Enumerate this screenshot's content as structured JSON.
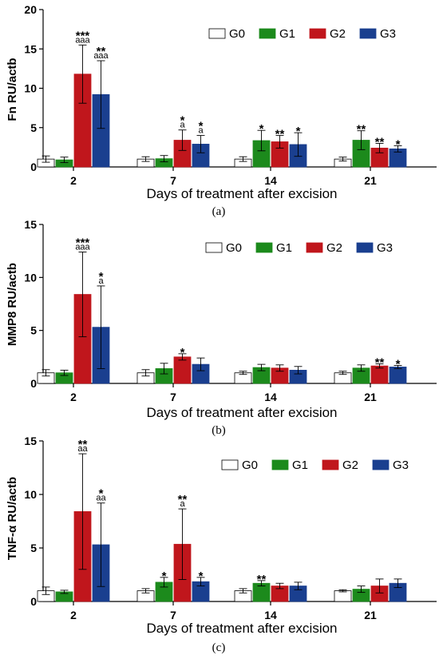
{
  "colors": {
    "G0": "#ffffff",
    "G1": "#1c8a1c",
    "G2": "#c0161c",
    "G3": "#1a3f8f"
  },
  "chart_data": [
    {
      "type": "bar",
      "panel": "(a)",
      "ylabel": "Fn RU/actb",
      "xlabel": "Days of treatment after excision",
      "ylim": [
        0,
        20
      ],
      "yticks": [
        0,
        5,
        10,
        15,
        20
      ],
      "categories": [
        "2",
        "7",
        "14",
        "21"
      ],
      "legend": "top-right",
      "series": [
        {
          "name": "G0",
          "values": [
            1.0,
            1.0,
            1.0,
            1.0
          ],
          "errors": [
            0.4,
            0.3,
            0.3,
            0.25
          ],
          "stars": [
            "",
            "",
            "",
            ""
          ],
          "letters": [
            "",
            "",
            "",
            ""
          ]
        },
        {
          "name": "G1",
          "values": [
            0.9,
            1.05,
            3.35,
            3.4
          ],
          "errors": [
            0.35,
            0.4,
            1.3,
            1.2
          ],
          "stars": [
            "",
            "",
            "*",
            "**"
          ],
          "letters": [
            "",
            "",
            "",
            ""
          ]
        },
        {
          "name": "G2",
          "values": [
            11.8,
            3.4,
            3.2,
            2.4
          ],
          "errors": [
            3.7,
            1.3,
            0.8,
            0.6
          ],
          "stars": [
            "***",
            "*",
            "**",
            "**"
          ],
          "letters": [
            "aaa",
            "a",
            "",
            ""
          ]
        },
        {
          "name": "G3",
          "values": [
            9.2,
            2.9,
            2.85,
            2.3
          ],
          "errors": [
            4.3,
            1.1,
            1.5,
            0.4
          ],
          "stars": [
            "**",
            "*",
            "*",
            "*"
          ],
          "letters": [
            "aaa",
            "a",
            "",
            ""
          ]
        }
      ]
    },
    {
      "type": "bar",
      "panel": "(b)",
      "ylabel": "MMP8 RU/actb",
      "xlabel": "Days of treatment after excision",
      "ylim": [
        0,
        15
      ],
      "yticks": [
        0,
        5,
        10,
        15
      ],
      "categories": [
        "2",
        "7",
        "14",
        "21"
      ],
      "legend": "top-right",
      "series": [
        {
          "name": "G0",
          "values": [
            1.0,
            1.0,
            1.0,
            1.0
          ],
          "errors": [
            0.3,
            0.3,
            0.15,
            0.15
          ],
          "stars": [
            "",
            "",
            "",
            ""
          ],
          "letters": [
            "",
            "",
            "",
            ""
          ]
        },
        {
          "name": "G1",
          "values": [
            1.0,
            1.4,
            1.5,
            1.45
          ],
          "errors": [
            0.25,
            0.5,
            0.3,
            0.3
          ],
          "stars": [
            "",
            "",
            "",
            ""
          ],
          "letters": [
            "",
            "",
            "",
            ""
          ]
        },
        {
          "name": "G2",
          "values": [
            8.4,
            2.5,
            1.45,
            1.65
          ],
          "errors": [
            4.0,
            0.3,
            0.3,
            0.2
          ],
          "stars": [
            "***",
            "*",
            "",
            "**"
          ],
          "letters": [
            "aaa",
            "",
            "",
            ""
          ]
        },
        {
          "name": "G3",
          "values": [
            5.3,
            1.8,
            1.25,
            1.55
          ],
          "errors": [
            3.9,
            0.6,
            0.35,
            0.15
          ],
          "stars": [
            "*",
            "",
            "",
            "*"
          ],
          "letters": [
            "a",
            "",
            "",
            ""
          ]
        }
      ]
    },
    {
      "type": "bar",
      "panel": "(c)",
      "ylabel": "TNF-α RU/actb",
      "xlabel": "Days of treatment after excision",
      "ylim": [
        0,
        15
      ],
      "yticks": [
        0,
        5,
        10,
        15
      ],
      "categories": [
        "2",
        "7",
        "14",
        "21"
      ],
      "legend": "top-right",
      "series": [
        {
          "name": "G0",
          "values": [
            1.0,
            1.0,
            1.0,
            1.0
          ],
          "errors": [
            0.35,
            0.2,
            0.2,
            0.1
          ],
          "stars": [
            "",
            "",
            "",
            ""
          ],
          "letters": [
            "",
            "",
            "",
            ""
          ]
        },
        {
          "name": "G1",
          "values": [
            0.9,
            1.8,
            1.7,
            1.15
          ],
          "errors": [
            0.15,
            0.45,
            0.25,
            0.3
          ],
          "stars": [
            "",
            "*",
            "**",
            ""
          ],
          "letters": [
            "",
            "",
            "",
            ""
          ]
        },
        {
          "name": "G2",
          "values": [
            8.4,
            5.35,
            1.45,
            1.45
          ],
          "errors": [
            5.4,
            3.3,
            0.25,
            0.65
          ],
          "stars": [
            "**",
            "**",
            "",
            ""
          ],
          "letters": [
            "aa",
            "a",
            "",
            ""
          ]
        },
        {
          "name": "G3",
          "values": [
            5.3,
            1.85,
            1.45,
            1.7
          ],
          "errors": [
            3.9,
            0.4,
            0.35,
            0.4
          ],
          "stars": [
            "*",
            "*",
            "",
            ""
          ],
          "letters": [
            "aa",
            "",
            "",
            ""
          ]
        }
      ]
    }
  ]
}
